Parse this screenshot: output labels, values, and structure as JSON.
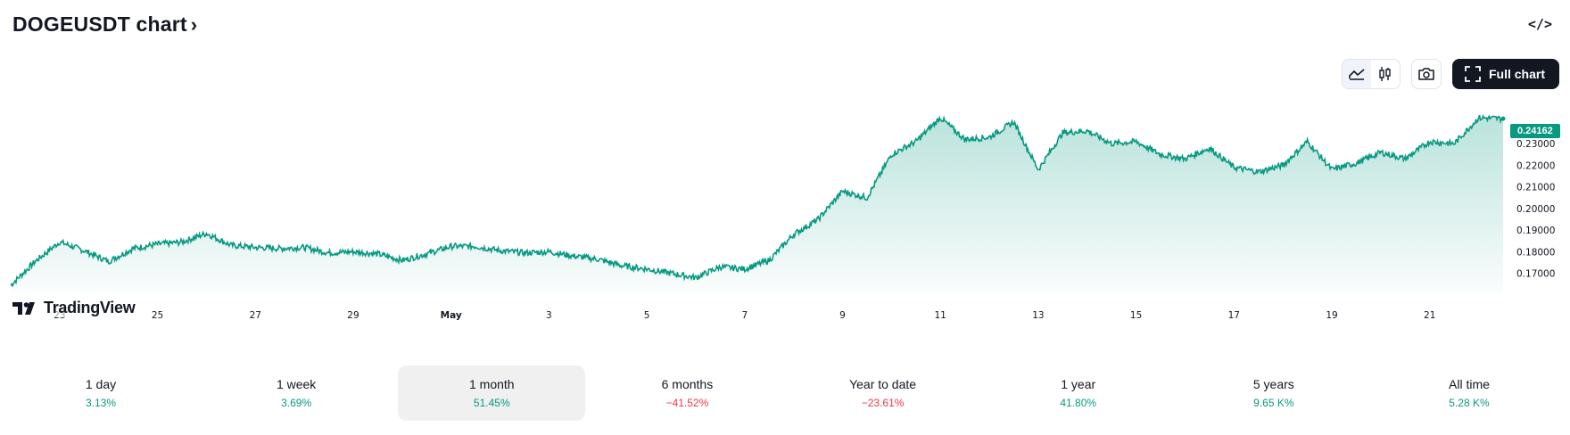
{
  "header": {
    "title": "DOGEUSDT chart",
    "title_chevron": "›",
    "embed_label": "</>"
  },
  "toolbar": {
    "area_icon": "area-chart-icon",
    "candle_icon": "candlestick-icon",
    "camera_icon": "camera-icon",
    "full_chart_label": "Full chart",
    "full_chart_icon": "expand-icon"
  },
  "logo": {
    "text": "TradingView"
  },
  "last_price": "0.24162",
  "colors": {
    "line": "#089981",
    "up": "#089981",
    "down": "#f23645",
    "button_dark": "#131722"
  },
  "chart_data": {
    "type": "area",
    "symbol": "DOGEUSDT",
    "y_ticks": [
      "0.23000",
      "0.22000",
      "0.21000",
      "0.20000",
      "0.19000",
      "0.18000",
      "0.17000"
    ],
    "x_ticks": [
      "23",
      "25",
      "27",
      "29",
      "May",
      "3",
      "5",
      "7",
      "9",
      "11",
      "13",
      "15",
      "17",
      "19",
      "21"
    ],
    "ylim": [
      0.1645,
      0.247
    ],
    "x": [
      "Apr 22",
      "Apr 22.5",
      "Apr 23",
      "Apr 23.5",
      "Apr 24",
      "Apr 24.5",
      "Apr 25",
      "Apr 25.5",
      "Apr 26",
      "Apr 26.5",
      "Apr 27",
      "Apr 27.5",
      "Apr 28",
      "Apr 28.5",
      "Apr 29",
      "Apr 29.5",
      "Apr 30",
      "Apr 30.5",
      "May 1",
      "May 1.5",
      "May 2",
      "May 2.5",
      "May 3",
      "May 3.5",
      "May 4",
      "May 4.5",
      "May 5",
      "May 5.5",
      "May 6",
      "May 6.5",
      "May 7",
      "May 7.5",
      "May 8",
      "May 8.5",
      "May 9",
      "May 9.5",
      "May 10",
      "May 10.5",
      "May 11",
      "May 11.5",
      "May 12",
      "May 12.5",
      "May 13",
      "May 13.5",
      "May 14",
      "May 14.5",
      "May 15",
      "May 15.5",
      "May 16",
      "May 16.5",
      "May 17",
      "May 17.5",
      "May 18",
      "May 18.5",
      "May 19",
      "May 19.5",
      "May 20",
      "May 20.5",
      "May 21",
      "May 21.5",
      "May 22",
      "May 22.3"
    ],
    "values": [
      0.1645,
      0.1755,
      0.1845,
      0.1805,
      0.1755,
      0.1815,
      0.1835,
      0.1845,
      0.1885,
      0.183,
      0.182,
      0.1815,
      0.182,
      0.1795,
      0.18,
      0.179,
      0.176,
      0.179,
      0.1825,
      0.1825,
      0.1805,
      0.1795,
      0.18,
      0.178,
      0.1765,
      0.1735,
      0.172,
      0.17,
      0.168,
      0.173,
      0.172,
      0.176,
      0.188,
      0.195,
      0.208,
      0.205,
      0.225,
      0.231,
      0.242,
      0.232,
      0.233,
      0.24,
      0.218,
      0.235,
      0.236,
      0.23,
      0.231,
      0.225,
      0.223,
      0.228,
      0.219,
      0.217,
      0.22,
      0.231,
      0.218,
      0.221,
      0.226,
      0.223,
      0.231,
      0.23,
      0.242,
      0.2416
    ]
  },
  "periods": [
    {
      "label": "1 day",
      "value": "3.13%",
      "trend": "up"
    },
    {
      "label": "1 week",
      "value": "3.69%",
      "trend": "up"
    },
    {
      "label": "1 month",
      "value": "51.45%",
      "trend": "up",
      "active": true
    },
    {
      "label": "6 months",
      "value": "−41.52%",
      "trend": "down"
    },
    {
      "label": "Year to date",
      "value": "−23.61%",
      "trend": "down"
    },
    {
      "label": "1 year",
      "value": "41.80%",
      "trend": "up"
    },
    {
      "label": "5 years",
      "value": "9.65 K%",
      "trend": "up"
    },
    {
      "label": "All time",
      "value": "5.28 K%",
      "trend": "up"
    }
  ]
}
